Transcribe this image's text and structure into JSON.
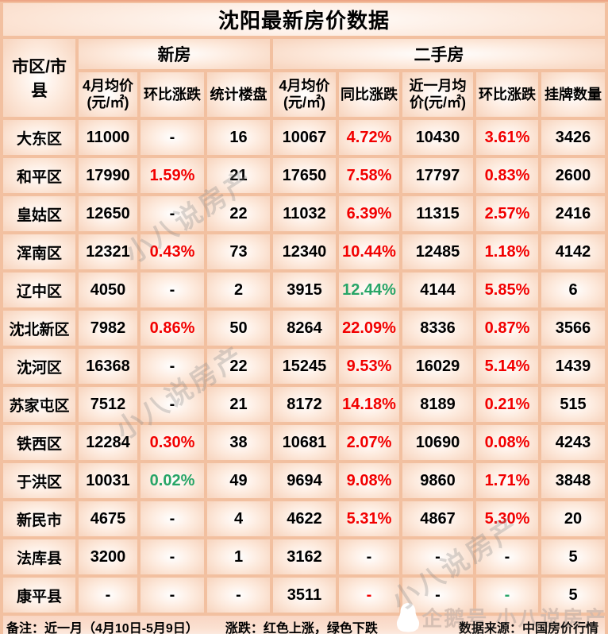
{
  "title": "沈阳最新房价数据",
  "chart_data": {
    "type": "table",
    "title": "沈阳最新房价数据",
    "corner_header": "市区/市县",
    "group_headers": [
      {
        "label": "新房",
        "colspan": 3
      },
      {
        "label": "二手房",
        "colspan": 5
      }
    ],
    "sub_headers": [
      "4月均价(元/㎡)",
      "环比涨跌",
      "统计楼盘",
      "4月均价(元/㎡)",
      "同比涨跌",
      "近一月均价(元/㎡)",
      "环比涨跌",
      "挂牌数量"
    ],
    "color_codes": {
      "k": "black",
      "r": "red-up",
      "g": "green-down"
    },
    "rows": [
      {
        "district": "大东区",
        "cells": [
          {
            "v": "11000",
            "c": "k"
          },
          {
            "v": "-",
            "c": "k"
          },
          {
            "v": "16",
            "c": "k"
          },
          {
            "v": "10067",
            "c": "k"
          },
          {
            "v": "4.72%",
            "c": "r"
          },
          {
            "v": "10430",
            "c": "k"
          },
          {
            "v": "3.61%",
            "c": "r"
          },
          {
            "v": "3426",
            "c": "k"
          }
        ]
      },
      {
        "district": "和平区",
        "cells": [
          {
            "v": "17990",
            "c": "k"
          },
          {
            "v": "1.59%",
            "c": "r"
          },
          {
            "v": "21",
            "c": "k"
          },
          {
            "v": "17650",
            "c": "k"
          },
          {
            "v": "7.58%",
            "c": "r"
          },
          {
            "v": "17797",
            "c": "k"
          },
          {
            "v": "0.83%",
            "c": "r"
          },
          {
            "v": "2600",
            "c": "k"
          }
        ]
      },
      {
        "district": "皇姑区",
        "cells": [
          {
            "v": "12650",
            "c": "k"
          },
          {
            "v": "-",
            "c": "k"
          },
          {
            "v": "22",
            "c": "k"
          },
          {
            "v": "11032",
            "c": "k"
          },
          {
            "v": "6.39%",
            "c": "r"
          },
          {
            "v": "11315",
            "c": "k"
          },
          {
            "v": "2.57%",
            "c": "r"
          },
          {
            "v": "2416",
            "c": "k"
          }
        ]
      },
      {
        "district": "浑南区",
        "cells": [
          {
            "v": "12321",
            "c": "k"
          },
          {
            "v": "0.43%",
            "c": "r"
          },
          {
            "v": "73",
            "c": "k"
          },
          {
            "v": "12340",
            "c": "k"
          },
          {
            "v": "10.44%",
            "c": "r"
          },
          {
            "v": "12485",
            "c": "k"
          },
          {
            "v": "1.18%",
            "c": "r"
          },
          {
            "v": "4142",
            "c": "k"
          }
        ]
      },
      {
        "district": "辽中区",
        "cells": [
          {
            "v": "4050",
            "c": "k"
          },
          {
            "v": "-",
            "c": "k"
          },
          {
            "v": "2",
            "c": "k"
          },
          {
            "v": "3915",
            "c": "k"
          },
          {
            "v": "12.44%",
            "c": "g"
          },
          {
            "v": "4144",
            "c": "k"
          },
          {
            "v": "5.85%",
            "c": "r"
          },
          {
            "v": "6",
            "c": "k"
          }
        ]
      },
      {
        "district": "沈北新区",
        "cells": [
          {
            "v": "7982",
            "c": "k"
          },
          {
            "v": "0.86%",
            "c": "r"
          },
          {
            "v": "50",
            "c": "k"
          },
          {
            "v": "8264",
            "c": "k"
          },
          {
            "v": "22.09%",
            "c": "r"
          },
          {
            "v": "8336",
            "c": "k"
          },
          {
            "v": "0.87%",
            "c": "r"
          },
          {
            "v": "3566",
            "c": "k"
          }
        ]
      },
      {
        "district": "沈河区",
        "cells": [
          {
            "v": "16368",
            "c": "k"
          },
          {
            "v": "-",
            "c": "k"
          },
          {
            "v": "22",
            "c": "k"
          },
          {
            "v": "15245",
            "c": "k"
          },
          {
            "v": "9.53%",
            "c": "r"
          },
          {
            "v": "16029",
            "c": "k"
          },
          {
            "v": "5.14%",
            "c": "r"
          },
          {
            "v": "1439",
            "c": "k"
          }
        ]
      },
      {
        "district": "苏家屯区",
        "cells": [
          {
            "v": "7512",
            "c": "k"
          },
          {
            "v": "-",
            "c": "k"
          },
          {
            "v": "21",
            "c": "k"
          },
          {
            "v": "8172",
            "c": "k"
          },
          {
            "v": "14.18%",
            "c": "r"
          },
          {
            "v": "8189",
            "c": "k"
          },
          {
            "v": "0.21%",
            "c": "r"
          },
          {
            "v": "515",
            "c": "k"
          }
        ]
      },
      {
        "district": "铁西区",
        "cells": [
          {
            "v": "12284",
            "c": "k"
          },
          {
            "v": "0.30%",
            "c": "r"
          },
          {
            "v": "38",
            "c": "k"
          },
          {
            "v": "10681",
            "c": "k"
          },
          {
            "v": "2.07%",
            "c": "r"
          },
          {
            "v": "10690",
            "c": "k"
          },
          {
            "v": "0.08%",
            "c": "r"
          },
          {
            "v": "4243",
            "c": "k"
          }
        ]
      },
      {
        "district": "于洪区",
        "cells": [
          {
            "v": "10031",
            "c": "k"
          },
          {
            "v": "0.02%",
            "c": "g"
          },
          {
            "v": "49",
            "c": "k"
          },
          {
            "v": "9694",
            "c": "k"
          },
          {
            "v": "9.08%",
            "c": "r"
          },
          {
            "v": "9860",
            "c": "k"
          },
          {
            "v": "1.71%",
            "c": "r"
          },
          {
            "v": "3848",
            "c": "k"
          }
        ]
      },
      {
        "district": "新民市",
        "cells": [
          {
            "v": "4675",
            "c": "k"
          },
          {
            "v": "-",
            "c": "k"
          },
          {
            "v": "4",
            "c": "k"
          },
          {
            "v": "4622",
            "c": "k"
          },
          {
            "v": "5.31%",
            "c": "r"
          },
          {
            "v": "4867",
            "c": "k"
          },
          {
            "v": "5.30%",
            "c": "r"
          },
          {
            "v": "20",
            "c": "k"
          }
        ]
      },
      {
        "district": "法库县",
        "cells": [
          {
            "v": "3200",
            "c": "k"
          },
          {
            "v": "-",
            "c": "k"
          },
          {
            "v": "1",
            "c": "k"
          },
          {
            "v": "3162",
            "c": "k"
          },
          {
            "v": "-",
            "c": "k"
          },
          {
            "v": "-",
            "c": "k"
          },
          {
            "v": "-",
            "c": "k"
          },
          {
            "v": "5",
            "c": "k"
          }
        ]
      },
      {
        "district": "康平县",
        "cells": [
          {
            "v": "-",
            "c": "k"
          },
          {
            "v": "-",
            "c": "k"
          },
          {
            "v": "-",
            "c": "k"
          },
          {
            "v": "3511",
            "c": "k"
          },
          {
            "v": "-",
            "c": "r"
          },
          {
            "v": "-",
            "c": "k"
          },
          {
            "v": "-",
            "c": "g"
          },
          {
            "v": "5",
            "c": "k"
          }
        ]
      }
    ]
  },
  "footer": {
    "note": "备注：近一月（4月10日-5月9日）",
    "legend": "涨跌：红色上涨，绿色下跌",
    "source": "数据来源：中国房价行情"
  },
  "watermark": {
    "text": "小八说房产",
    "badge": "企鹅号 小八说房产"
  },
  "colors": {
    "up_red": "#f20000",
    "down_green": "#27a567",
    "grid": "#f2c0a0"
  }
}
